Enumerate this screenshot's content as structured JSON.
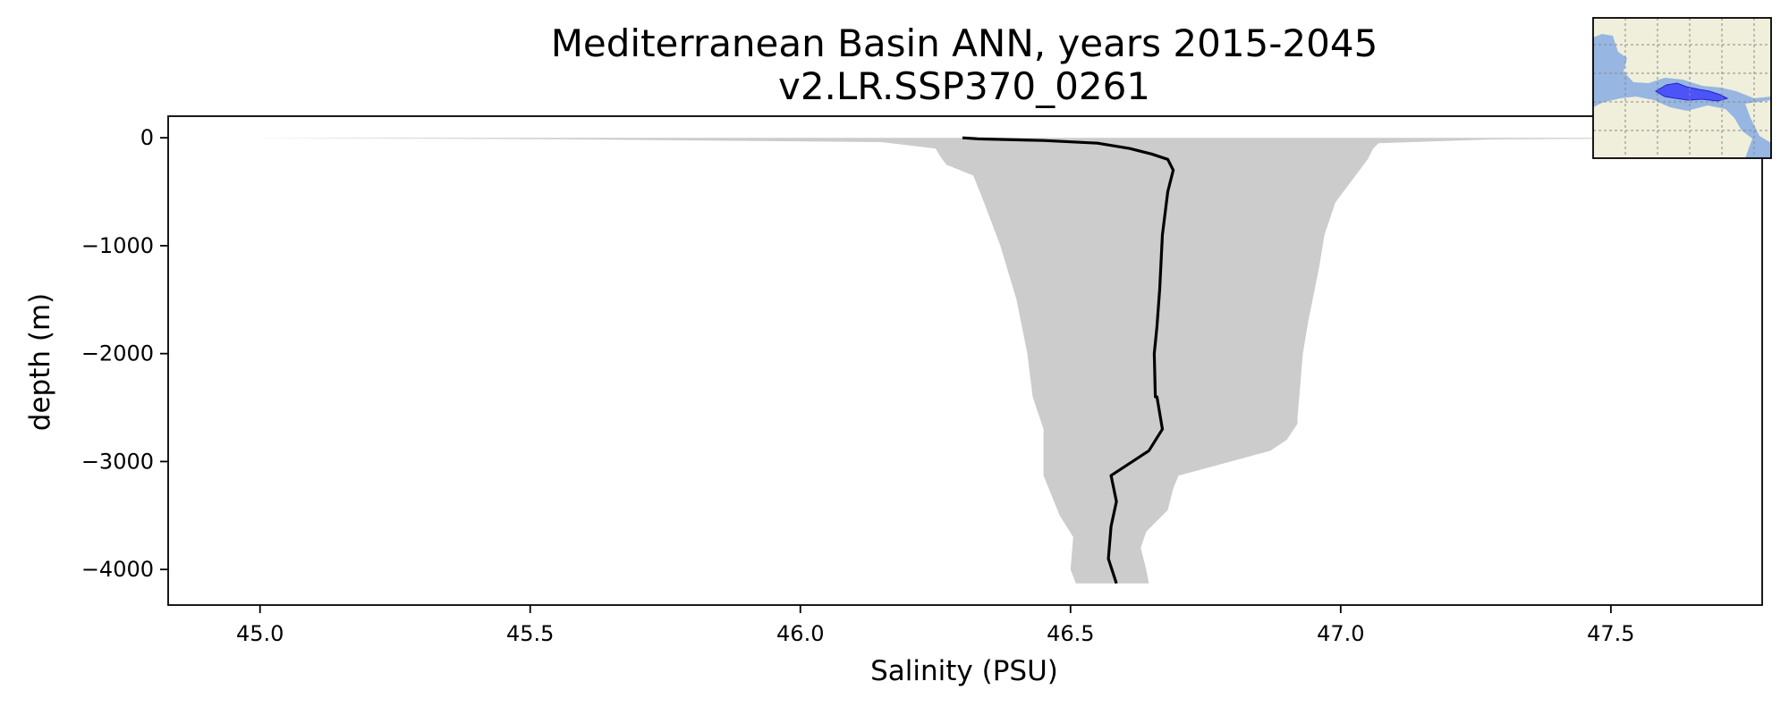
{
  "chart_data": {
    "type": "line",
    "title": "Mediterranean Basin ANN, years 2015-2045",
    "subtitle": "v2.LR.SSP370_0261",
    "xlabel": "Salinity (PSU)",
    "ylabel": "depth (m)",
    "xlim": [
      44.83,
      47.78
    ],
    "ylim": [
      -4330,
      200
    ],
    "xticks": [
      45.0,
      45.5,
      46.0,
      46.5,
      47.0,
      47.5
    ],
    "xtick_labels": [
      "45.0",
      "45.5",
      "46.0",
      "46.5",
      "47.0",
      "47.5"
    ],
    "yticks": [
      0,
      -1000,
      -2000,
      -3000,
      -4000
    ],
    "ytick_labels": [
      "0",
      "−1000",
      "−2000",
      "−3000",
      "−4000"
    ],
    "grid": false,
    "legend": "none",
    "series": [
      {
        "kind": "mean-profile",
        "color": "#000000",
        "points": [
          [
            46.3,
            0
          ],
          [
            46.33,
            -10
          ],
          [
            46.45,
            -25
          ],
          [
            46.55,
            -50
          ],
          [
            46.61,
            -100
          ],
          [
            46.65,
            -150
          ],
          [
            46.68,
            -200
          ],
          [
            46.69,
            -300
          ],
          [
            46.68,
            -500
          ],
          [
            46.67,
            -900
          ],
          [
            46.665,
            -1400
          ],
          [
            46.66,
            -1750
          ],
          [
            46.655,
            -2000
          ],
          [
            46.657,
            -2400
          ],
          [
            46.66,
            -2400
          ],
          [
            46.67,
            -2700
          ],
          [
            46.645,
            -2900
          ],
          [
            46.575,
            -3130
          ],
          [
            46.585,
            -3370
          ],
          [
            46.575,
            -3600
          ],
          [
            46.57,
            -3900
          ],
          [
            46.585,
            -4130
          ]
        ]
      },
      {
        "kind": "range-envelope",
        "color": "#cccccc",
        "left": [
          [
            44.98,
            0
          ],
          [
            45.6,
            -15
          ],
          [
            46.15,
            -40
          ],
          [
            46.25,
            -100
          ],
          [
            46.26,
            -180
          ],
          [
            46.27,
            -250
          ],
          [
            46.32,
            -350
          ],
          [
            46.34,
            -600
          ],
          [
            46.37,
            -1000
          ],
          [
            46.4,
            -1500
          ],
          [
            46.42,
            -2000
          ],
          [
            46.43,
            -2400
          ],
          [
            46.45,
            -2700
          ],
          [
            46.45,
            -3000
          ],
          [
            46.45,
            -3130
          ],
          [
            46.48,
            -3500
          ],
          [
            46.505,
            -3700
          ],
          [
            46.5,
            -4000
          ],
          [
            46.51,
            -4130
          ]
        ],
        "right": [
          [
            47.72,
            0
          ],
          [
            47.28,
            -15
          ],
          [
            47.07,
            -50
          ],
          [
            47.06,
            -100
          ],
          [
            47.05,
            -200
          ],
          [
            47.02,
            -400
          ],
          [
            46.99,
            -600
          ],
          [
            46.97,
            -900
          ],
          [
            46.96,
            -1200
          ],
          [
            46.94,
            -1700
          ],
          [
            46.93,
            -2000
          ],
          [
            46.92,
            -2600
          ],
          [
            46.92,
            -2650
          ],
          [
            46.9,
            -2800
          ],
          [
            46.87,
            -2900
          ],
          [
            46.76,
            -3050
          ],
          [
            46.7,
            -3130
          ],
          [
            46.69,
            -3250
          ],
          [
            46.68,
            -3450
          ],
          [
            46.64,
            -3650
          ],
          [
            46.63,
            -3800
          ],
          [
            46.64,
            -4000
          ],
          [
            46.645,
            -4130
          ]
        ]
      }
    ]
  },
  "inset_map": {
    "region": "Mediterranean Basin",
    "ocean_color": "#97b6e1",
    "land_color": "#efefdb",
    "highlight_color": "#3333ff"
  }
}
